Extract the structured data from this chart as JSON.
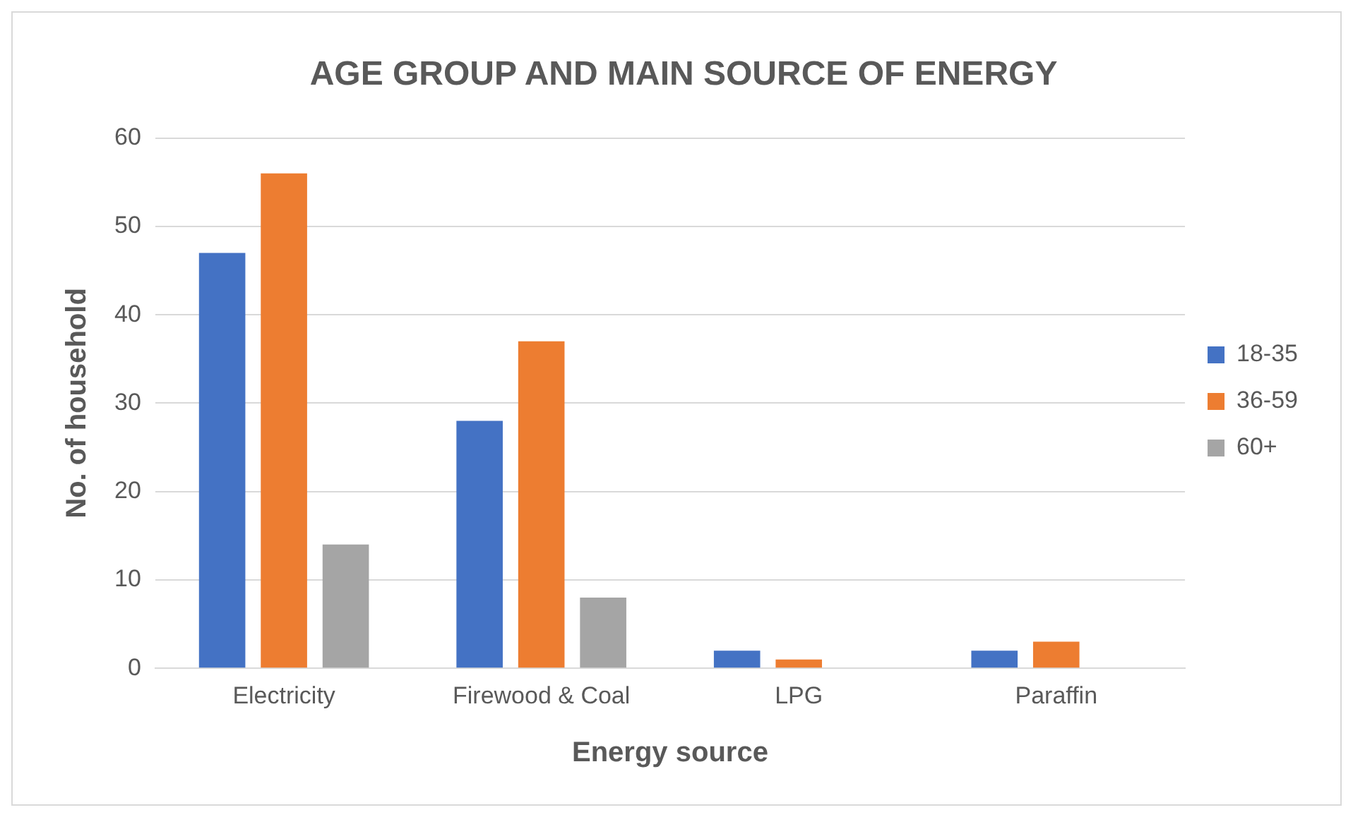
{
  "chart_data": {
    "type": "bar",
    "title": "AGE GROUP AND MAIN SOURCE OF ENERGY",
    "xlabel": "Energy source",
    "ylabel": "No. of household",
    "categories": [
      "Electricity",
      "Firewood & Coal",
      "LPG",
      "Paraffin"
    ],
    "series": [
      {
        "name": "18-35",
        "color": "#4472c4",
        "values": [
          47,
          28,
          2,
          2
        ]
      },
      {
        "name": "36-59",
        "color": "#ed7d31",
        "values": [
          56,
          37,
          1,
          3
        ]
      },
      {
        "name": "60+",
        "color": "#a5a5a5",
        "values": [
          14,
          8,
          0,
          0
        ]
      }
    ],
    "ylim": [
      0,
      60
    ],
    "yticks": [
      0,
      10,
      20,
      30,
      40,
      50,
      60
    ],
    "grid": "y",
    "legend": "right"
  }
}
